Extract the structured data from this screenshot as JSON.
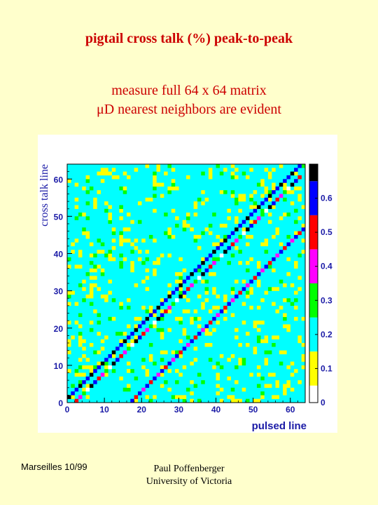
{
  "header": {
    "title": "pigtail cross talk (%) peak-to-peak",
    "subtitle_line1": "measure full 64 x 64 matrix",
    "subtitle_line2": "μD nearest neighbors are evident"
  },
  "footer": {
    "left": "Marseilles 10/99",
    "author": "Paul Poffenberger",
    "affiliation": "University of Victoria"
  },
  "chart_data": {
    "type": "heatmap",
    "title": "",
    "xlabel": "pulsed line",
    "ylabel": "cross talk line",
    "xlim": [
      0,
      64
    ],
    "ylim": [
      0,
      64
    ],
    "xticks": [
      0,
      10,
      20,
      30,
      40,
      50,
      60
    ],
    "yticks": [
      0,
      10,
      20,
      30,
      40,
      50,
      60
    ],
    "background_value": 0.2,
    "colorbar": {
      "min": 0,
      "max": 0.7,
      "ticks": [
        0,
        0.1,
        0.2,
        0.3,
        0.4,
        0.5,
        0.6
      ],
      "tick_labels": [
        "0",
        "0.1",
        "0.2",
        "0.3",
        "0.4",
        "0.5",
        "0.6"
      ],
      "colors": [
        "#ffffff",
        "#ffff00",
        "#00ffff",
        "#00ff00",
        "#ff00ff",
        "#ff0000",
        "#0000ff",
        "#000000"
      ],
      "bands": [
        [
          0,
          0.05
        ],
        [
          0.05,
          0.15
        ],
        [
          0.15,
          0.25
        ],
        [
          0.25,
          0.35
        ],
        [
          0.35,
          0.45
        ],
        [
          0.45,
          0.55
        ],
        [
          0.55,
          0.65
        ],
        [
          0.65,
          0.7
        ]
      ]
    },
    "diagonals": [
      {
        "description": "upper neighbor band",
        "x_start": 0,
        "y_start": 1,
        "x_end": 64,
        "y_end": 65
      },
      {
        "description": "center band",
        "x_start": 2,
        "y_start": 0,
        "x_end": 63,
        "y_end": 61
      },
      {
        "description": "lower neighbor band",
        "x_start": 17,
        "y_start": 0,
        "x_end": 64,
        "y_end": 47
      }
    ],
    "noise_fraction": {
      "yellow": 0.12,
      "green": 0.04
    }
  },
  "colors": {
    "title": "#cc0000",
    "axis_labels": "#1a1aa6",
    "background": "#ffffcc"
  }
}
